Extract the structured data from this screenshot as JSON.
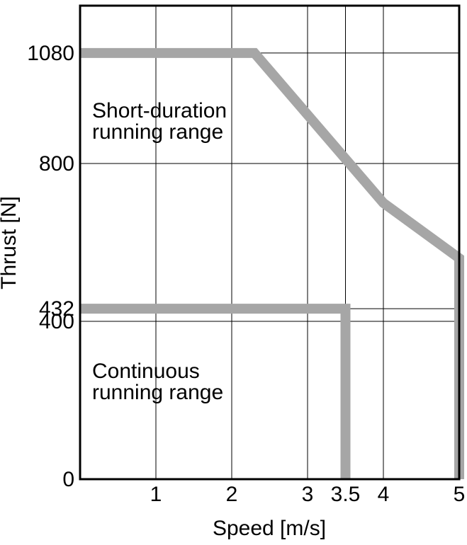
{
  "chart_data": {
    "type": "line",
    "xlabel": "Speed [m/s]",
    "ylabel": "Thrust [N]",
    "xlim": [
      0,
      5
    ],
    "ylim": [
      0,
      1200
    ],
    "xticks": [
      1,
      2,
      3,
      3.5,
      4,
      5
    ],
    "yticks": [
      0,
      400,
      432,
      800,
      1080
    ],
    "grid": true,
    "series": [
      {
        "x": [
          0,
          2.3,
          4,
          5,
          5
        ],
        "values": [
          1080,
          1080,
          700,
          560,
          0
        ],
        "color": "#a6a6a6"
      },
      {
        "x": [
          0,
          3.5,
          3.5
        ],
        "values": [
          432,
          432,
          0
        ],
        "color": "#a6a6a6"
      }
    ],
    "annotations": [
      [
        "Short-duration",
        "running range"
      ],
      [
        "Continuous",
        "running range"
      ]
    ]
  }
}
